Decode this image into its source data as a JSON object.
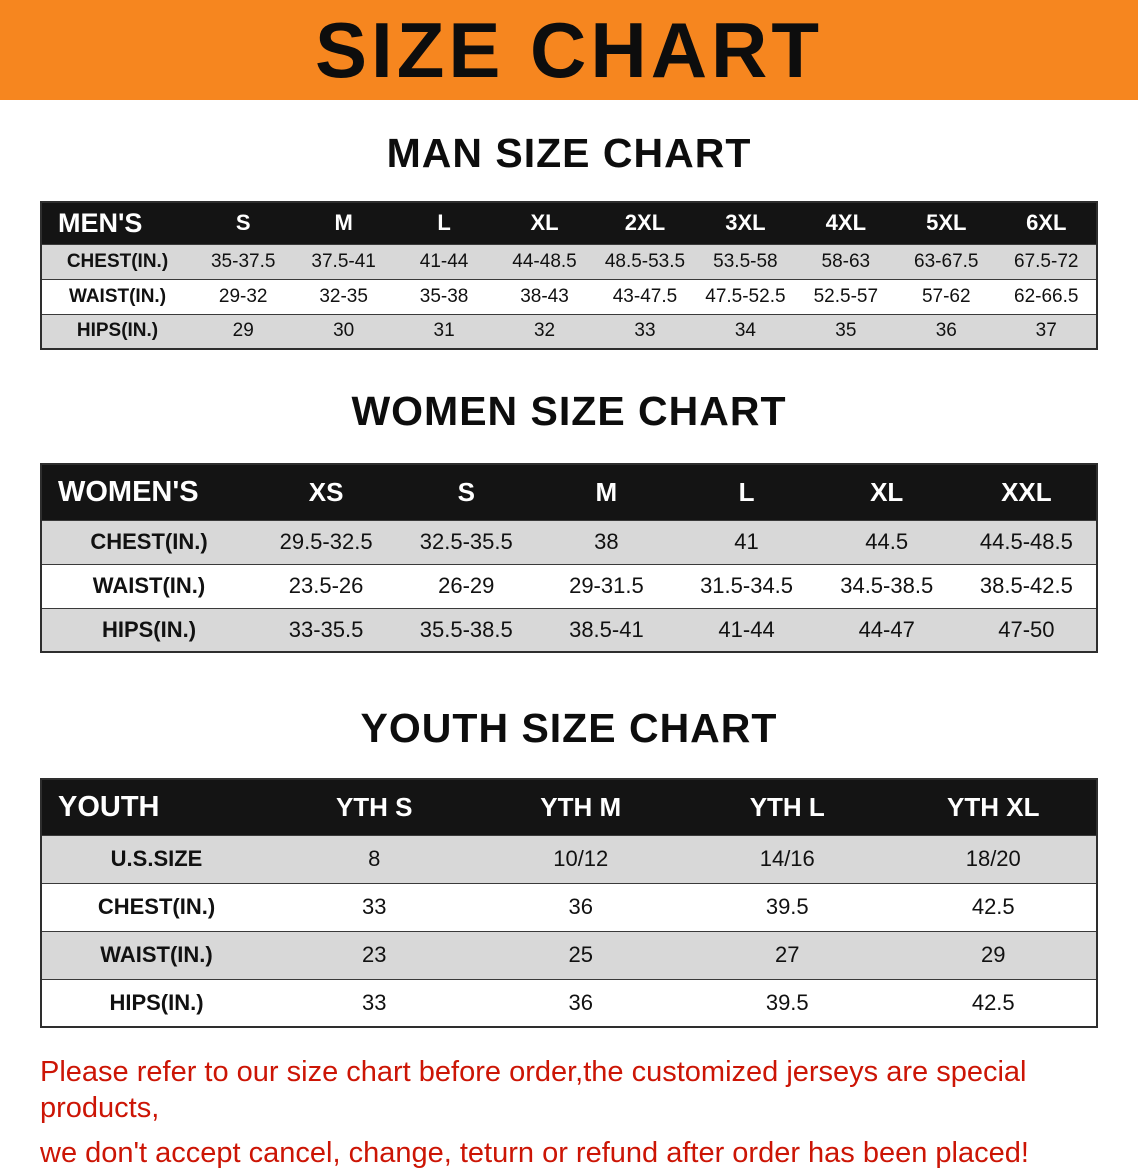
{
  "banner": {
    "title": "SIZE CHART"
  },
  "colors": {
    "banner_bg": "#f6861f",
    "table_header_bg": "#141414",
    "row_alt_bg": "#d8d8d8",
    "disclaimer_text": "#cc1505"
  },
  "sections": [
    {
      "id": "men",
      "heading": "MAN SIZE CHART",
      "columns": [
        "MEN'S",
        "S",
        "M",
        "L",
        "XL",
        "2XL",
        "3XL",
        "4XL",
        "5XL",
        "6XL"
      ],
      "rows": [
        [
          "CHEST(IN.)",
          "35-37.5",
          "37.5-41",
          "41-44",
          "44-48.5",
          "48.5-53.5",
          "53.5-58",
          "58-63",
          "63-67.5",
          "67.5-72"
        ],
        [
          "WAIST(IN.)",
          "29-32",
          "32-35",
          "35-38",
          "38-43",
          "43-47.5",
          "47.5-52.5",
          "52.5-57",
          "57-62",
          "62-66.5"
        ],
        [
          "HIPS(IN.)",
          "29",
          "30",
          "31",
          "32",
          "33",
          "34",
          "35",
          "36",
          "37"
        ]
      ]
    },
    {
      "id": "women",
      "heading": "WOMEN SIZE CHART",
      "columns": [
        "WOMEN'S",
        "XS",
        "S",
        "M",
        "L",
        "XL",
        "XXL"
      ],
      "rows": [
        [
          "CHEST(IN.)",
          "29.5-32.5",
          "32.5-35.5",
          "38",
          "41",
          "44.5",
          "44.5-48.5"
        ],
        [
          "WAIST(IN.)",
          "23.5-26",
          "26-29",
          "29-31.5",
          "31.5-34.5",
          "34.5-38.5",
          "38.5-42.5"
        ],
        [
          "HIPS(IN.)",
          "33-35.5",
          "35.5-38.5",
          "38.5-41",
          "41-44",
          "44-47",
          "47-50"
        ]
      ]
    },
    {
      "id": "youth",
      "heading": "YOUTH SIZE CHART",
      "columns": [
        "YOUTH",
        "YTH S",
        "YTH M",
        "YTH L",
        "YTH XL"
      ],
      "rows": [
        [
          "U.S.SIZE",
          "8",
          "10/12",
          "14/16",
          "18/20"
        ],
        [
          "CHEST(IN.)",
          "33",
          "36",
          "39.5",
          "42.5"
        ],
        [
          "WAIST(IN.)",
          "23",
          "25",
          "27",
          "29"
        ],
        [
          "HIPS(IN.)",
          "33",
          "36",
          "39.5",
          "42.5"
        ]
      ]
    }
  ],
  "disclaimer": {
    "line1": "Please refer to our size chart before order,the customized jerseys are special products,",
    "line2": "we don't accept cancel, change, teturn or refund after order has been placed!"
  }
}
